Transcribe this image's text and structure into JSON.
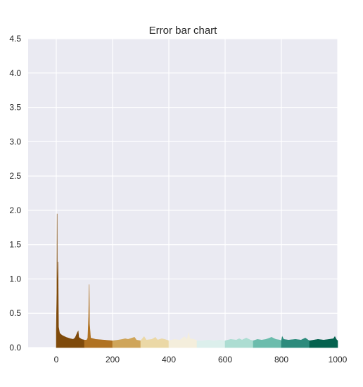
{
  "chart_data": {
    "type": "area",
    "title": "Error bar chart",
    "xlabel": "",
    "ylabel": "",
    "xlim": [
      -100,
      1000
    ],
    "ylim": [
      0,
      4.5
    ],
    "xticks": [
      0,
      200,
      400,
      600,
      800,
      1000
    ],
    "xtick_labels": [
      "0",
      "200",
      "400",
      "600",
      "800",
      "1000"
    ],
    "yticks": [
      0.0,
      0.5,
      1.0,
      1.5,
      2.0,
      2.5,
      3.0,
      3.5,
      4.0,
      4.5
    ],
    "ytick_labels": [
      "0.0",
      "0.5",
      "1.0",
      "1.5",
      "2.0",
      "2.5",
      "3.0",
      "3.5",
      "4.0",
      "4.5"
    ],
    "grid": true,
    "background": "#eaeaf2",
    "series": [
      {
        "color": "#7f4a0b",
        "points": [
          [
            0,
            0.24
          ],
          [
            2,
            0.8
          ],
          [
            3,
            1.95
          ],
          [
            4,
            0.6
          ],
          [
            6,
            1.25
          ],
          [
            8,
            0.3
          ],
          [
            12,
            0.21
          ],
          [
            20,
            0.18
          ],
          [
            35,
            0.15
          ],
          [
            50,
            0.13
          ],
          [
            60,
            0.12
          ],
          [
            66,
            0.14
          ],
          [
            70,
            0.17
          ],
          [
            75,
            0.22
          ],
          [
            78,
            0.24
          ],
          [
            80,
            0.15
          ],
          [
            90,
            0.12
          ],
          [
            100,
            0.11
          ]
        ]
      },
      {
        "color": "#b07222",
        "points": [
          [
            100,
            0.11
          ],
          [
            108,
            0.11
          ],
          [
            112,
            0.14
          ],
          [
            115,
            0.45
          ],
          [
            117,
            0.92
          ],
          [
            118,
            0.35
          ],
          [
            122,
            0.14
          ],
          [
            140,
            0.12
          ],
          [
            170,
            0.11
          ],
          [
            200,
            0.1
          ]
        ]
      },
      {
        "color": "#cfa55a",
        "points": [
          [
            200,
            0.1
          ],
          [
            220,
            0.11
          ],
          [
            235,
            0.12
          ],
          [
            245,
            0.13
          ],
          [
            255,
            0.12
          ],
          [
            270,
            0.14
          ],
          [
            278,
            0.15
          ],
          [
            285,
            0.11
          ],
          [
            300,
            0.1
          ]
        ]
      },
      {
        "color": "#ebd8a6",
        "points": [
          [
            300,
            0.1
          ],
          [
            308,
            0.14
          ],
          [
            312,
            0.16
          ],
          [
            320,
            0.11
          ],
          [
            340,
            0.12
          ],
          [
            352,
            0.15
          ],
          [
            360,
            0.11
          ],
          [
            375,
            0.13
          ],
          [
            385,
            0.12
          ],
          [
            400,
            0.1
          ]
        ]
      },
      {
        "color": "#f4eedc",
        "points": [
          [
            400,
            0.1
          ],
          [
            420,
            0.12
          ],
          [
            440,
            0.11
          ],
          [
            455,
            0.16
          ],
          [
            465,
            0.12
          ],
          [
            470,
            0.22
          ],
          [
            475,
            0.13
          ],
          [
            490,
            0.12
          ],
          [
            500,
            0.1
          ]
        ]
      },
      {
        "color": "#dcefec",
        "points": [
          [
            500,
            0.1
          ],
          [
            520,
            0.1
          ],
          [
            540,
            0.11
          ],
          [
            560,
            0.1
          ],
          [
            580,
            0.11
          ],
          [
            600,
            0.1
          ]
        ]
      },
      {
        "color": "#acddd2",
        "points": [
          [
            600,
            0.1
          ],
          [
            620,
            0.12
          ],
          [
            640,
            0.11
          ],
          [
            650,
            0.13
          ],
          [
            660,
            0.11
          ],
          [
            675,
            0.14
          ],
          [
            690,
            0.11
          ],
          [
            700,
            0.1
          ]
        ]
      },
      {
        "color": "#6bbcac",
        "points": [
          [
            700,
            0.1
          ],
          [
            715,
            0.12
          ],
          [
            730,
            0.11
          ],
          [
            745,
            0.12
          ],
          [
            765,
            0.15
          ],
          [
            780,
            0.12
          ],
          [
            795,
            0.11
          ],
          [
            800,
            0.1
          ]
        ]
      },
      {
        "color": "#2c8b7c",
        "points": [
          [
            800,
            0.1
          ],
          [
            803,
            0.16
          ],
          [
            808,
            0.12
          ],
          [
            825,
            0.11
          ],
          [
            850,
            0.12
          ],
          [
            870,
            0.11
          ],
          [
            885,
            0.14
          ],
          [
            895,
            0.11
          ],
          [
            900,
            0.1
          ]
        ]
      },
      {
        "color": "#04624e",
        "points": [
          [
            900,
            0.1
          ],
          [
            915,
            0.11
          ],
          [
            930,
            0.12
          ],
          [
            950,
            0.11
          ],
          [
            970,
            0.12
          ],
          [
            985,
            0.13
          ],
          [
            990,
            0.16
          ],
          [
            995,
            0.12
          ],
          [
            1000,
            0.1
          ]
        ]
      }
    ]
  }
}
